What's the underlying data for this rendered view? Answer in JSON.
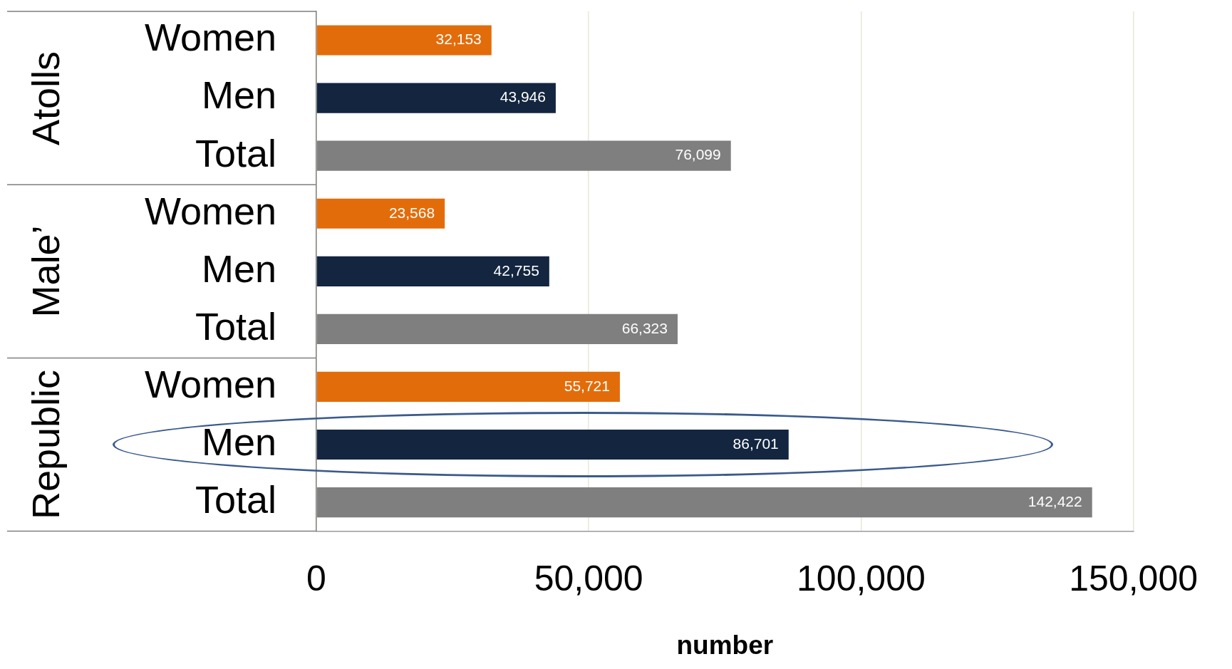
{
  "chart_data": {
    "type": "bar",
    "orientation": "horizontal",
    "xlabel": "number",
    "categories": [
      "Women",
      "Men",
      "Total",
      "Women",
      "Men",
      "Total",
      "Women",
      "Men",
      "Total"
    ],
    "values": [
      32153,
      43946,
      76099,
      23568,
      42755,
      66323,
      55721,
      86701,
      142422
    ],
    "colors": [
      "#e36c0a",
      "#13253f",
      "#7f7f7f",
      "#e36c0a",
      "#13253f",
      "#7f7f7f",
      "#e36c0a",
      "#13253f",
      "#7f7f7f"
    ],
    "xlim": [
      0,
      150000
    ],
    "xticks": [
      {
        "value": 0,
        "label": "0"
      },
      {
        "value": 50000,
        "label": "50,000"
      },
      {
        "value": 100000,
        "label": "100,000"
      },
      {
        "value": 150000,
        "label": "150,000"
      }
    ],
    "grid": "x",
    "value_labels": [
      "32,153",
      "43,946",
      "76,099",
      "23,568",
      "42,755",
      "66,323",
      "55,721",
      "86,701",
      "142,422"
    ],
    "annotations": [
      "Atolls",
      "Male’",
      "Republic"
    ]
  }
}
